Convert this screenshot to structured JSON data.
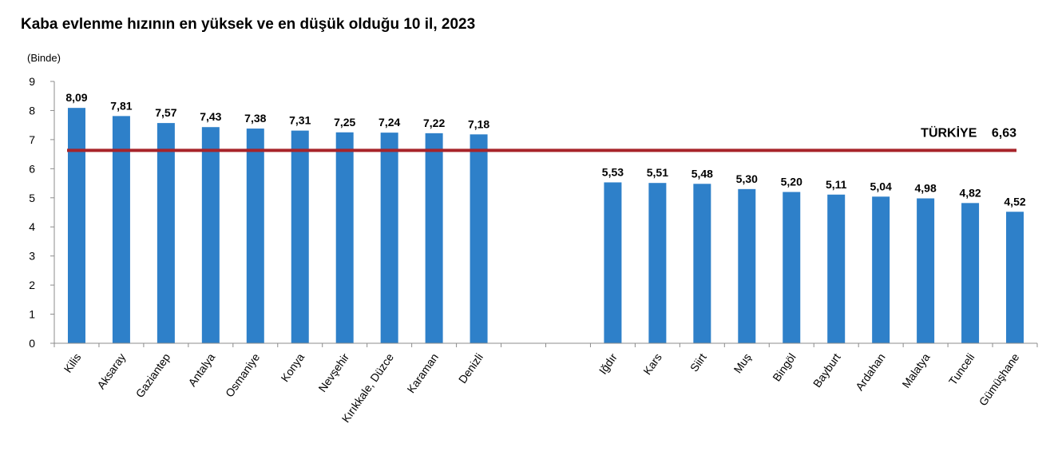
{
  "chart_data": {
    "type": "bar",
    "title": "Kaba evlenme hızının en yüksek ve en düşük olduğu 10 il, 2023",
    "ylabel": "(Binde)",
    "xlabel": "",
    "ylim": [
      0,
      9
    ],
    "yticks": [
      "0",
      "1",
      "2",
      "3",
      "4",
      "5",
      "6",
      "7",
      "8",
      "9"
    ],
    "grid": false,
    "colors": {
      "bar": "#2e80c9",
      "reference_line": "#a7242a",
      "axis": "#8c8c8c"
    },
    "groups": [
      {
        "categories": [
          "Kilis",
          "Aksaray",
          "Gaziantep",
          "Antalya",
          "Osmaniye",
          "Konya",
          "Nevşehir",
          "Kırıkkale, Düzce",
          "Karaman",
          "Denizli"
        ],
        "values": [
          8.09,
          7.81,
          7.57,
          7.43,
          7.38,
          7.31,
          7.25,
          7.24,
          7.22,
          7.18
        ],
        "value_labels": [
          "8,09",
          "7,81",
          "7,57",
          "7,43",
          "7,38",
          "7,31",
          "7,25",
          "7,24",
          "7,22",
          "7,18"
        ]
      },
      {
        "categories": [
          "Iğdır",
          "Kars",
          "Siirt",
          "Muş",
          "Bingöl",
          "Bayburt",
          "Ardahan",
          "Malatya",
          "Tunceli",
          "Gümüşhane"
        ],
        "values": [
          5.53,
          5.51,
          5.48,
          5.3,
          5.2,
          5.11,
          5.04,
          4.98,
          4.82,
          4.52
        ],
        "value_labels": [
          "5,53",
          "5,51",
          "5,48",
          "5,30",
          "5,20",
          "5,11",
          "5,04",
          "4,98",
          "4,82",
          "4,52"
        ]
      }
    ],
    "reference_line": {
      "value": 6.63,
      "label_name": "TÜRKİYE",
      "label_value": "6,63"
    }
  }
}
